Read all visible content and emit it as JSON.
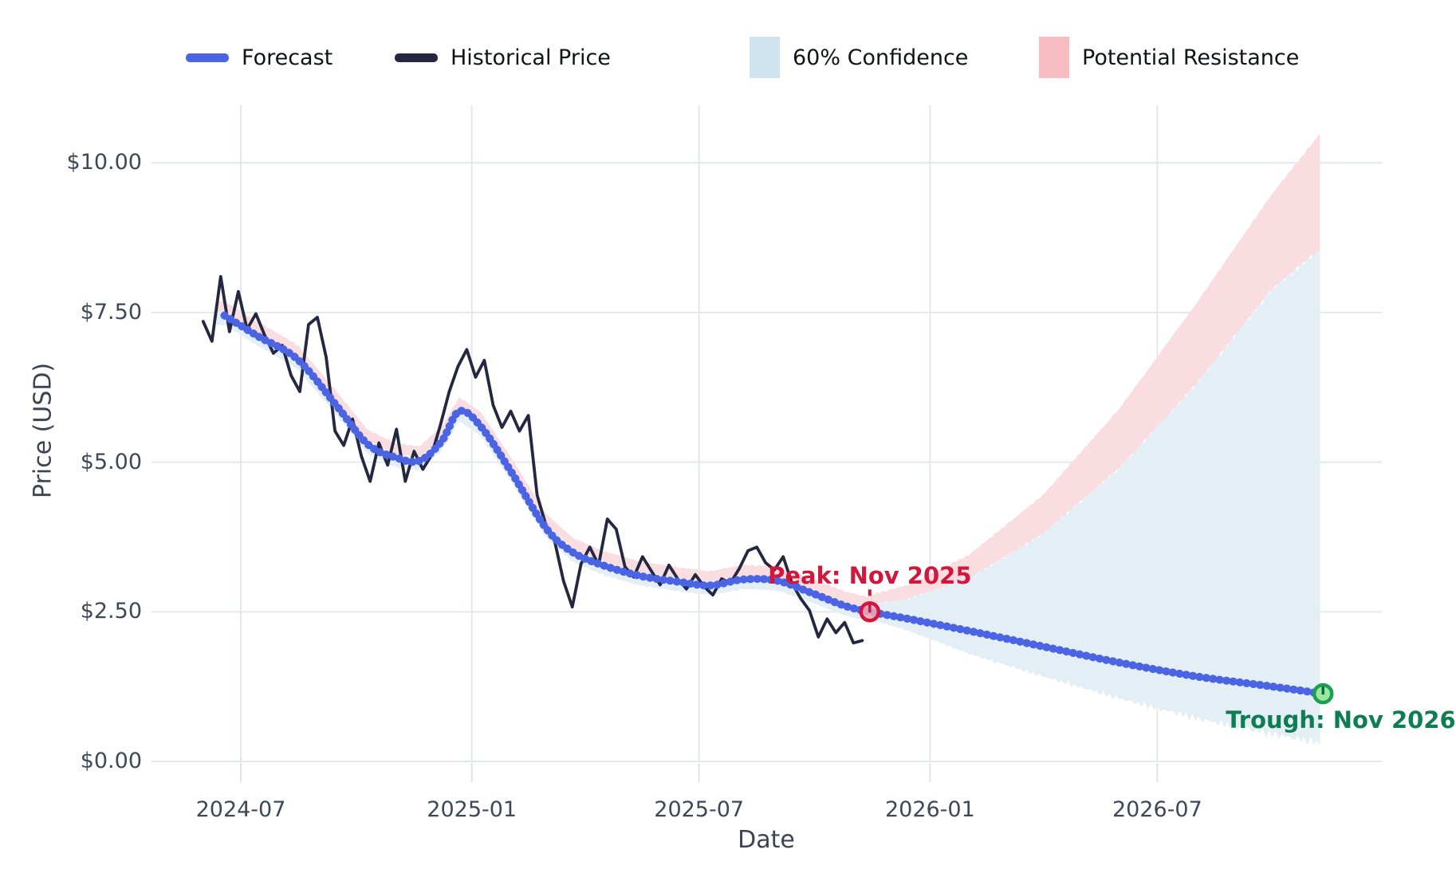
{
  "chart_data": {
    "type": "line",
    "title": "",
    "xlabel": "Date",
    "ylabel": "Price (USD)",
    "x_ticks": [
      "2024-07",
      "2025-01",
      "2025-07",
      "2026-01",
      "2026-07"
    ],
    "y_ticks": [
      "$0.00",
      "$2.50",
      "$5.00",
      "$7.50",
      "$10.00"
    ],
    "y_tick_values": [
      0,
      2.5,
      5,
      7.5,
      10
    ],
    "ylim": [
      0,
      11
    ],
    "grid": true,
    "legend_position": "top",
    "legend": [
      {
        "label": "Forecast",
        "swatch": "line",
        "color": "#4b64e4"
      },
      {
        "label": "Historical Price",
        "swatch": "line",
        "color": "#232840"
      },
      {
        "label": "60% Confidence",
        "swatch": "patch",
        "color": "#cfe4ef"
      },
      {
        "label": "Potential Resistance",
        "swatch": "patch",
        "color": "#f6bcc1"
      }
    ],
    "series": {
      "historical": {
        "name": "Historical Price",
        "color": "#232840",
        "start_date": "2024-06-01",
        "step_days": 7,
        "values": [
          7.35,
          7.02,
          8.1,
          7.18,
          7.85,
          7.22,
          7.48,
          7.12,
          6.82,
          6.95,
          6.45,
          6.18,
          7.3,
          7.42,
          6.75,
          5.52,
          5.28,
          5.72,
          5.1,
          4.68,
          5.32,
          4.95,
          5.55,
          4.68,
          5.18,
          4.88,
          5.12,
          5.62,
          6.18,
          6.6,
          6.88,
          6.42,
          6.7,
          5.95,
          5.58,
          5.85,
          5.52,
          5.78,
          4.45,
          3.95,
          3.68,
          3.02,
          2.58,
          3.3,
          3.58,
          3.28,
          4.05,
          3.88,
          3.25,
          3.08,
          3.42,
          3.18,
          2.95,
          3.28,
          3.05,
          2.88,
          3.12,
          2.92,
          2.78,
          3.05,
          2.98,
          3.22,
          3.52,
          3.58,
          3.32,
          3.2,
          3.42,
          2.98,
          2.72,
          2.52,
          2.08,
          2.38,
          2.15,
          2.32,
          1.98,
          2.02
        ]
      },
      "forecast": {
        "name": "Forecast",
        "color": "#4b64e4",
        "forecast_start_date": "2025-11-14",
        "points": [
          {
            "d": "2024-06-18",
            "v": 7.45
          },
          {
            "d": "2024-07-15",
            "v": 7.1
          },
          {
            "d": "2024-08-15",
            "v": 6.72
          },
          {
            "d": "2024-09-15",
            "v": 5.95
          },
          {
            "d": "2024-10-10",
            "v": 5.3
          },
          {
            "d": "2024-11-01",
            "v": 5.08
          },
          {
            "d": "2024-11-20",
            "v": 5.02
          },
          {
            "d": "2024-12-08",
            "v": 5.35
          },
          {
            "d": "2024-12-22",
            "v": 5.85
          },
          {
            "d": "2025-01-08",
            "v": 5.6
          },
          {
            "d": "2025-02-01",
            "v": 4.85
          },
          {
            "d": "2025-03-01",
            "v": 3.9
          },
          {
            "d": "2025-03-22",
            "v": 3.5
          },
          {
            "d": "2025-04-15",
            "v": 3.28
          },
          {
            "d": "2025-05-15",
            "v": 3.1
          },
          {
            "d": "2025-06-15",
            "v": 3.0
          },
          {
            "d": "2025-07-10",
            "v": 2.94
          },
          {
            "d": "2025-08-05",
            "v": 3.04
          },
          {
            "d": "2025-09-01",
            "v": 3.02
          },
          {
            "d": "2025-09-28",
            "v": 2.82
          },
          {
            "d": "2025-10-25",
            "v": 2.6
          },
          {
            "d": "2025-11-14",
            "v": 2.5
          },
          {
            "d": "2025-12-15",
            "v": 2.38
          },
          {
            "d": "2026-02-01",
            "v": 2.18
          },
          {
            "d": "2026-04-01",
            "v": 1.92
          },
          {
            "d": "2026-06-01",
            "v": 1.65
          },
          {
            "d": "2026-08-01",
            "v": 1.42
          },
          {
            "d": "2026-10-01",
            "v": 1.25
          },
          {
            "d": "2026-11-10",
            "v": 1.13
          }
        ]
      },
      "confidence": {
        "name": "60% Confidence",
        "fill": "#e3eef5",
        "hist_offsets": {
          "lower": -0.16,
          "upper": 0.06
        },
        "points": [
          {
            "d": "2025-11-14",
            "lower": 2.38,
            "upper": 2.62
          },
          {
            "d": "2025-12-15",
            "lower": 2.18,
            "upper": 2.72
          },
          {
            "d": "2026-02-01",
            "lower": 1.8,
            "upper": 3.05
          },
          {
            "d": "2026-04-01",
            "lower": 1.42,
            "upper": 3.8
          },
          {
            "d": "2026-06-01",
            "lower": 1.05,
            "upper": 4.9
          },
          {
            "d": "2026-08-01",
            "lower": 0.72,
            "upper": 6.3
          },
          {
            "d": "2026-10-01",
            "lower": 0.45,
            "upper": 7.9
          },
          {
            "d": "2026-11-10",
            "lower": 0.3,
            "upper": 8.6
          }
        ]
      },
      "resistance": {
        "name": "Potential Resistance",
        "fill": "#f9dde1",
        "hist_offsets": {
          "lower": 0.02,
          "upper": 0.24
        },
        "points": [
          {
            "d": "2025-11-14",
            "upper": 2.78
          },
          {
            "d": "2025-12-15",
            "upper": 2.95
          },
          {
            "d": "2026-02-01",
            "upper": 3.45
          },
          {
            "d": "2026-04-01",
            "upper": 4.45
          },
          {
            "d": "2026-06-01",
            "upper": 5.9
          },
          {
            "d": "2026-08-01",
            "upper": 7.65
          },
          {
            "d": "2026-10-01",
            "upper": 9.5
          },
          {
            "d": "2026-11-10",
            "upper": 10.55
          }
        ]
      }
    },
    "annotations": [
      {
        "id": "peak",
        "text": "Peak: Nov 2025",
        "date": "2025-11-14",
        "value": 2.5,
        "text_color": "#d2163c",
        "marker_stroke": "#d2163c",
        "marker_fill": "#f4a7b9"
      },
      {
        "id": "trough",
        "text": "Trough: Nov 2026",
        "date": "2026-11-10",
        "value": 1.13,
        "text_color": "#0e7d52",
        "marker_stroke": "#1d9e50",
        "marker_fill": "#9ce8a2"
      }
    ],
    "colors": {
      "background": "#ffffff",
      "grid": "#e4e7eb",
      "tick_text": "#3e4857",
      "forecast_line": "#4b64e4",
      "historical_line": "#232840",
      "confidence_fill": "#e3eef5",
      "resistance_fill": "#f9dde1"
    }
  }
}
